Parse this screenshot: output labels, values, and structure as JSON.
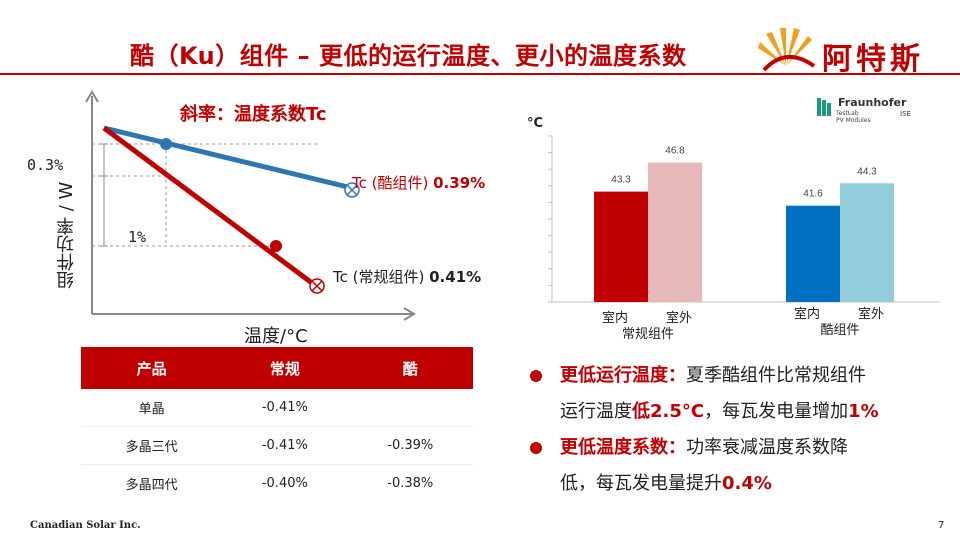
{
  "header": {
    "title": "酷（Ku）组件 – 更低的运行温度、更小的温度系数",
    "brand": "阿特斯"
  },
  "left_chart": {
    "slope_label": "斜率：温度系数Tc",
    "y_axis_label": "组件功率 / W",
    "x_axis_label": "温度/°C",
    "annotation_drop_ku": "0.3%",
    "annotation_drop_normal": "1%",
    "line_ku": {
      "label": "Tc (酷组件)",
      "value": "0.39%",
      "color": "#2e75b6"
    },
    "line_normal": {
      "label": "Tc (常规组件)",
      "value": "0.41%",
      "color": "#c00000"
    }
  },
  "table": {
    "headers": [
      "产品",
      "常规",
      "酷"
    ],
    "rows": [
      [
        "单晶",
        "-0.41%",
        ""
      ],
      [
        "多晶三代",
        "-0.41%",
        "-0.39%"
      ],
      [
        "多晶四代",
        "-0.40%",
        "-0.38%"
      ]
    ]
  },
  "fraunhofer": {
    "name": "Fraunhofer",
    "sub_line1": "TestLab",
    "sub_line2": "PV Modules",
    "unit": "ISE"
  },
  "chart_data": {
    "type": "bar",
    "ylabel": "°C",
    "groups": [
      {
        "name": "常规组件",
        "bars": [
          {
            "label": "室内",
            "value": 43.3,
            "color": "#c00000"
          },
          {
            "label": "室外",
            "value": 46.8,
            "color": "#e6b8b7"
          }
        ]
      },
      {
        "name": "酷组件",
        "bars": [
          {
            "label": "室内",
            "value": 41.6,
            "color": "#0070c0"
          },
          {
            "label": "室外",
            "value": 44.3,
            "color": "#92cddc"
          }
        ]
      }
    ],
    "ylim": [
      30,
      50
    ]
  },
  "bullets": [
    {
      "title": "更低运行温度：",
      "text1": "夏季酷组件比常规组件",
      "text2a": "运行温度",
      "hl1": "低2.5°C",
      "text2b": "，每瓦发电量增加",
      "hl2": "1%"
    },
    {
      "title": "更低温度系数：",
      "text1": "功率衰减温度系数降",
      "text2a": "低，每瓦发电量提升",
      "hl1": "0.4%"
    }
  ],
  "footer": {
    "company": "Canadian Solar Inc.",
    "page": "7"
  }
}
